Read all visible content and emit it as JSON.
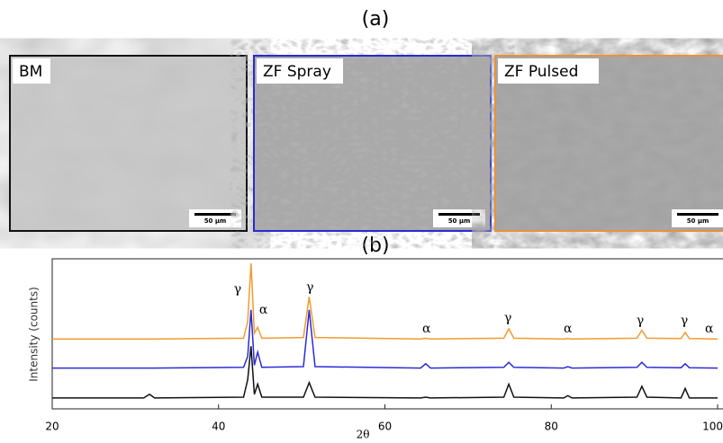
{
  "figure_a": {
    "label": "(a)",
    "panels": [
      {
        "label": "BM",
        "scale_bar": "50 µm",
        "border_color": "#111111"
      },
      {
        "label": "ZF Spray",
        "scale_bar": "50 µm",
        "border_color": "#2a2ad0"
      },
      {
        "label": "ZF Pulsed",
        "scale_bar": "50 µm",
        "border_color": "#e8923a"
      }
    ]
  },
  "figure_b_label": "(b)",
  "chart_data": {
    "type": "line",
    "x_label": "2θ",
    "y_label": "Intensity (counts)",
    "x": [
      20,
      31,
      31.7,
      32.3,
      43,
      43.5,
      43.9,
      44.3,
      44.7,
      45.2,
      50.2,
      50.9,
      51.6,
      64.3,
      64.9,
      65.5,
      74.3,
      74.9,
      75.5,
      81.5,
      82,
      82.5,
      90.3,
      90.9,
      91.5,
      95.6,
      96.1,
      96.6,
      100
    ],
    "series": [
      {
        "color": "#f39a2e",
        "values": [
          48,
          48,
          48,
          48,
          48.5,
          60,
          100,
          52,
          56,
          48.5,
          49,
          77,
          49,
          48,
          48.5,
          48,
          48.5,
          55,
          48.5,
          48,
          48.3,
          48,
          48.5,
          54,
          48.5,
          48.3,
          52.5,
          48.3,
          48
        ]
      },
      {
        "color": "#2b2bd6",
        "values": [
          28,
          28,
          28,
          28,
          28.5,
          36,
          68,
          30,
          39,
          28.5,
          29,
          68,
          29,
          28,
          31,
          28,
          28.5,
          32,
          28.5,
          28,
          29,
          28,
          28.5,
          32,
          28.5,
          28.3,
          31,
          28.3,
          28
        ]
      },
      {
        "color": "#111111",
        "values": [
          7.5,
          7.5,
          10,
          7.5,
          8,
          20,
          43,
          10,
          17,
          8,
          8,
          18,
          8,
          7.5,
          8,
          7.5,
          8,
          17,
          8,
          7.5,
          9,
          7.5,
          8,
          15.5,
          8,
          7.5,
          14,
          7.5,
          7.5
        ]
      }
    ],
    "xlim": [
      20,
      100
    ],
    "xticks": [
      20,
      40,
      60,
      80,
      100
    ],
    "ylim": [
      0,
      100
    ],
    "annotations": [
      "γ",
      "α",
      "γ",
      "α",
      "γ",
      "α",
      "γ",
      "γ",
      "α"
    ]
  }
}
